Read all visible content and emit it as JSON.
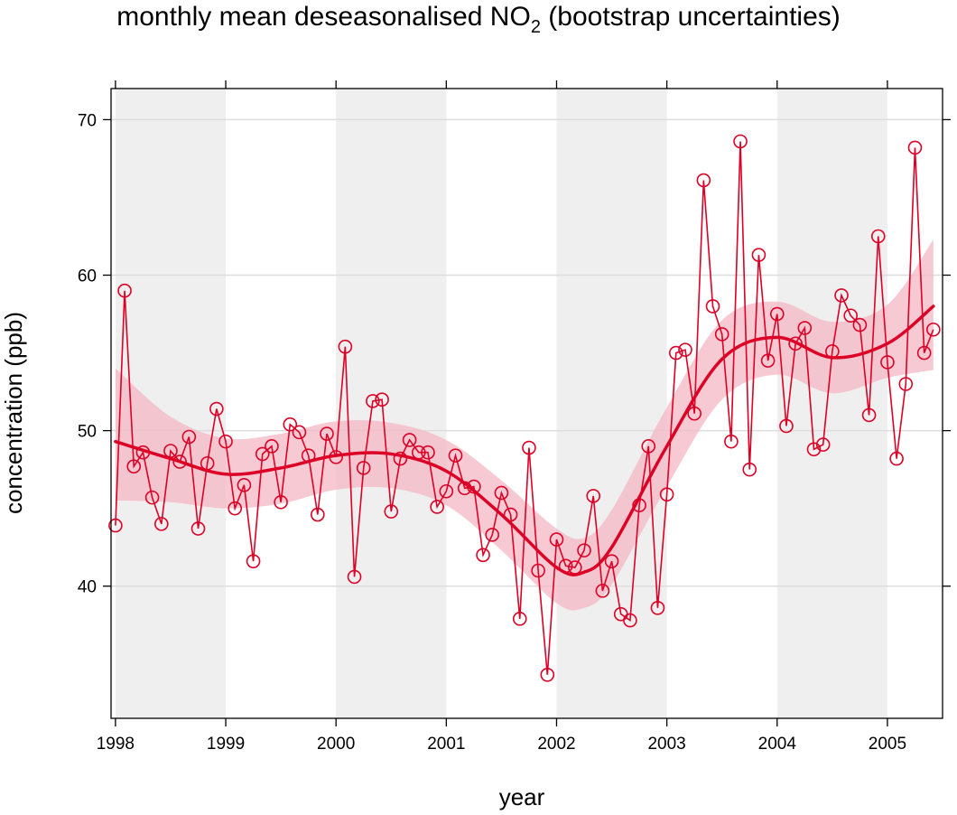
{
  "chart_data": {
    "type": "line",
    "title": {
      "main": "monthly mean deseasonalised NO",
      "subscript": "2",
      "suffix": " (bootstrap uncertainties)"
    },
    "xlabel": "year",
    "ylabel": "concentration (ppb)",
    "xlim": [
      1997.96,
      2005.5
    ],
    "ylim": [
      31.5,
      72
    ],
    "xticks": [
      "1998",
      "1999",
      "2000",
      "2001",
      "2002",
      "2003",
      "2004",
      "2005"
    ],
    "yticks": [
      "40",
      "50",
      "60",
      "70"
    ],
    "grid": true,
    "colors": {
      "series": "#dc0026",
      "band": "#f4b7c3",
      "shade": "#efefef",
      "grid": "#dedede"
    },
    "shaded_years": [
      1998,
      2000,
      2002,
      2004
    ],
    "series": [
      {
        "type": "observed",
        "points": [
          [
            "1998-01",
            43.9
          ],
          [
            "1998-02",
            59.0
          ],
          [
            "1998-03",
            47.7
          ],
          [
            "1998-04",
            48.6
          ],
          [
            "1998-05",
            45.7
          ],
          [
            "1998-06",
            44.0
          ],
          [
            "1998-07",
            48.7
          ],
          [
            "1998-08",
            48.0
          ],
          [
            "1998-09",
            49.6
          ],
          [
            "1998-10",
            43.7
          ],
          [
            "1998-11",
            47.9
          ],
          [
            "1998-12",
            51.4
          ],
          [
            "1999-01",
            49.3
          ],
          [
            "1999-02",
            45.0
          ],
          [
            "1999-03",
            46.5
          ],
          [
            "1999-04",
            41.6
          ],
          [
            "1999-05",
            48.5
          ],
          [
            "1999-06",
            49.0
          ],
          [
            "1999-07",
            45.4
          ],
          [
            "1999-08",
            50.4
          ],
          [
            "1999-09",
            49.9
          ],
          [
            "1999-10",
            48.4
          ],
          [
            "1999-11",
            44.6
          ],
          [
            "1999-12",
            49.8
          ],
          [
            "2000-01",
            48.3
          ],
          [
            "2000-02",
            55.4
          ],
          [
            "2000-03",
            40.6
          ],
          [
            "2000-04",
            47.6
          ],
          [
            "2000-05",
            51.9
          ],
          [
            "2000-06",
            52.0
          ],
          [
            "2000-07",
            44.8
          ],
          [
            "2000-08",
            48.2
          ],
          [
            "2000-09",
            49.4
          ],
          [
            "2000-10",
            48.6
          ],
          [
            "2000-11",
            48.6
          ],
          [
            "2000-12",
            45.1
          ],
          [
            "2001-01",
            46.1
          ],
          [
            "2001-02",
            48.4
          ],
          [
            "2001-03",
            46.3
          ],
          [
            "2001-04",
            46.4
          ],
          [
            "2001-05",
            42.0
          ],
          [
            "2001-06",
            43.3
          ],
          [
            "2001-07",
            46.0
          ],
          [
            "2001-08",
            44.6
          ],
          [
            "2001-09",
            37.9
          ],
          [
            "2001-10",
            48.9
          ],
          [
            "2001-11",
            41.0
          ],
          [
            "2001-12",
            34.3
          ],
          [
            "2002-01",
            43.0
          ],
          [
            "2002-02",
            41.3
          ],
          [
            "2002-03",
            41.2
          ],
          [
            "2002-04",
            42.3
          ],
          [
            "2002-05",
            45.8
          ],
          [
            "2002-06",
            39.7
          ],
          [
            "2002-07",
            41.6
          ],
          [
            "2002-08",
            38.2
          ],
          [
            "2002-09",
            37.8
          ],
          [
            "2002-10",
            45.2
          ],
          [
            "2002-11",
            49.0
          ],
          [
            "2002-12",
            38.6
          ],
          [
            "2003-01",
            45.9
          ],
          [
            "2003-02",
            55.0
          ],
          [
            "2003-03",
            55.2
          ],
          [
            "2003-04",
            51.1
          ],
          [
            "2003-05",
            66.1
          ],
          [
            "2003-06",
            58.0
          ],
          [
            "2003-07",
            56.2
          ],
          [
            "2003-08",
            49.3
          ],
          [
            "2003-09",
            68.6
          ],
          [
            "2003-10",
            47.5
          ],
          [
            "2003-11",
            61.3
          ],
          [
            "2003-12",
            54.5
          ],
          [
            "2004-01",
            57.5
          ],
          [
            "2004-02",
            50.3
          ],
          [
            "2004-03",
            55.6
          ],
          [
            "2004-04",
            56.6
          ],
          [
            "2004-05",
            48.8
          ],
          [
            "2004-06",
            49.1
          ],
          [
            "2004-07",
            55.1
          ],
          [
            "2004-08",
            58.7
          ],
          [
            "2004-09",
            57.4
          ],
          [
            "2004-10",
            56.8
          ],
          [
            "2004-11",
            51.0
          ],
          [
            "2004-12",
            62.5
          ],
          [
            "2005-01",
            54.4
          ],
          [
            "2005-02",
            48.2
          ],
          [
            "2005-03",
            53.0
          ],
          [
            "2005-04",
            68.2
          ],
          [
            "2005-05",
            55.0
          ],
          [
            "2005-06",
            56.5
          ]
        ]
      },
      {
        "type": "smooth",
        "points": [
          [
            "1998-01",
            49.3
          ],
          [
            "1998-07",
            48.2
          ],
          [
            "1999-01",
            47.2
          ],
          [
            "1999-07",
            47.6
          ],
          [
            "2000-01",
            48.4
          ],
          [
            "2000-07",
            48.5
          ],
          [
            "2001-01",
            47.4
          ],
          [
            "2001-07",
            44.6
          ],
          [
            "2002-01",
            41.2
          ],
          [
            "2002-04",
            40.9
          ],
          [
            "2002-07",
            42.5
          ],
          [
            "2003-01",
            49.0
          ],
          [
            "2003-07",
            54.6
          ],
          [
            "2004-01",
            56.0
          ],
          [
            "2004-07",
            54.7
          ],
          [
            "2005-01",
            55.6
          ],
          [
            "2005-06",
            58.0
          ]
        ]
      },
      {
        "type": "band",
        "upper": [
          [
            "1998-01",
            54.0
          ],
          [
            "1998-07",
            50.9
          ],
          [
            "1999-01",
            49.5
          ],
          [
            "1999-07",
            49.8
          ],
          [
            "2000-01",
            50.6
          ],
          [
            "2000-07",
            50.5
          ],
          [
            "2001-01",
            49.4
          ],
          [
            "2001-07",
            46.8
          ],
          [
            "2002-01",
            43.7
          ],
          [
            "2002-04",
            43.1
          ],
          [
            "2002-07",
            44.9
          ],
          [
            "2003-01",
            51.5
          ],
          [
            "2003-07",
            57.1
          ],
          [
            "2004-01",
            58.3
          ],
          [
            "2004-07",
            57.0
          ],
          [
            "2005-01",
            58.1
          ],
          [
            "2005-06",
            62.3
          ]
        ],
        "lower": [
          [
            "1998-01",
            45.5
          ],
          [
            "1998-07",
            45.4
          ],
          [
            "1999-01",
            45.0
          ],
          [
            "1999-07",
            45.3
          ],
          [
            "2000-01",
            46.2
          ],
          [
            "2000-07",
            46.3
          ],
          [
            "2001-01",
            45.2
          ],
          [
            "2001-07",
            42.3
          ],
          [
            "2002-01",
            38.9
          ],
          [
            "2002-04",
            38.6
          ],
          [
            "2002-07",
            40.1
          ],
          [
            "2003-01",
            46.4
          ],
          [
            "2003-07",
            52.0
          ],
          [
            "2004-01",
            53.6
          ],
          [
            "2004-07",
            52.4
          ],
          [
            "2005-01",
            53.4
          ],
          [
            "2005-06",
            53.9
          ]
        ]
      }
    ]
  }
}
